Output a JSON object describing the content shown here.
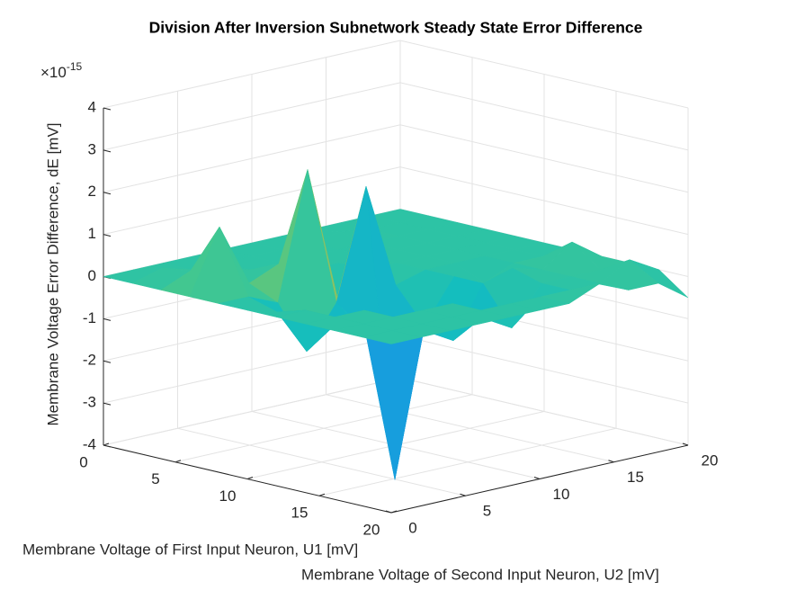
{
  "chart_data": {
    "type": "surface",
    "title": "Division After Inversion Subnetwork Steady State Error Difference",
    "xlabel": "Membrane Voltage of First Input Neuron, U1 [mV]",
    "ylabel": "Membrane Voltage of Second Input Neuron, U2 [mV]",
    "zlabel": "Membrane Voltage Error Difference, dE [mV]",
    "zexponent": {
      "base": "×10",
      "power": "-15"
    },
    "colormap": "parula",
    "grid": true,
    "x": [
      0,
      2,
      4,
      6,
      8,
      10,
      12,
      14,
      16,
      18,
      20
    ],
    "y": [
      0,
      2,
      4,
      6,
      8,
      10,
      12,
      14,
      16,
      18,
      20
    ],
    "z": [
      [
        0,
        0,
        0,
        0,
        0,
        0,
        0,
        0,
        0,
        0,
        0
      ],
      [
        0,
        0.2,
        0,
        0,
        0,
        0,
        0,
        0.1,
        0,
        0,
        0
      ],
      [
        0,
        0.3,
        0.2,
        0,
        0,
        0,
        0,
        0,
        0,
        0,
        0
      ],
      [
        0,
        1.5,
        0,
        0.3,
        0,
        0,
        0,
        0,
        0,
        0,
        0
      ],
      [
        0,
        0,
        -0.3,
        2.7,
        -0.5,
        0,
        0,
        0,
        0,
        0,
        0
      ],
      [
        0,
        -0.2,
        -1.3,
        -0.3,
        2.3,
        -0.2,
        0,
        0,
        0,
        0,
        0
      ],
      [
        0,
        0,
        -0.5,
        -0.8,
        -4.5,
        -1,
        0,
        -0.3,
        0,
        0,
        0
      ],
      [
        0,
        0,
        0,
        -0.6,
        -0.8,
        -1.2,
        0,
        0.2,
        0,
        0.5,
        0
      ],
      [
        0,
        0,
        0,
        0,
        0,
        -0.5,
        -0.9,
        0,
        0,
        0,
        0
      ],
      [
        0,
        0,
        0,
        0,
        0,
        0,
        0,
        0,
        0,
        0.4,
        0
      ],
      [
        0,
        0,
        0,
        0,
        0,
        0,
        0,
        0.3,
        0,
        0,
        -0.5
      ]
    ],
    "xlim": [
      0,
      20
    ],
    "xticks": [
      0,
      5,
      10,
      15,
      20
    ],
    "ylim": [
      0,
      20
    ],
    "yticks": [
      0,
      5,
      10,
      15,
      20
    ],
    "zlim": [
      -4,
      4
    ],
    "zticks": [
      -4,
      -3,
      -2,
      -1,
      0,
      1,
      2,
      3,
      4
    ]
  }
}
